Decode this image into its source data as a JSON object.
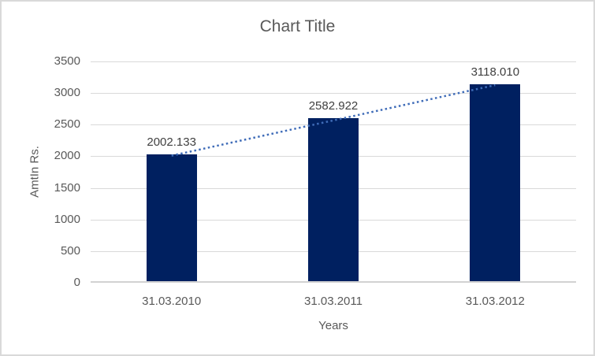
{
  "frame": {
    "background": "#ffffff",
    "border_color": "#d9d9d9"
  },
  "chart_data": {
    "type": "bar",
    "title": "Chart Title",
    "xlabel": "Years",
    "ylabel": "AmtIn Rs.",
    "categories": [
      "31.03.2010",
      "31.03.2011",
      "31.03.2012"
    ],
    "values": [
      2002.133,
      2582.922,
      3118.01
    ],
    "data_labels": [
      "2002.133",
      "2582.922",
      "3118.010"
    ],
    "ylim": [
      0,
      3500
    ],
    "ytick_step": 500,
    "yticks": [
      "0",
      "500",
      "1000",
      "1500",
      "2000",
      "2500",
      "3000",
      "3500"
    ],
    "grid": true,
    "legend_position": "none",
    "bar_color": "#002060",
    "trendline": {
      "type": "linear",
      "style": "dotted",
      "color": "#3f6cb8"
    },
    "gridline_color": "#d9d9d9",
    "axis_line_color": "#d2d2d2",
    "text_color": "#595959",
    "data_label_color": "#404040"
  }
}
